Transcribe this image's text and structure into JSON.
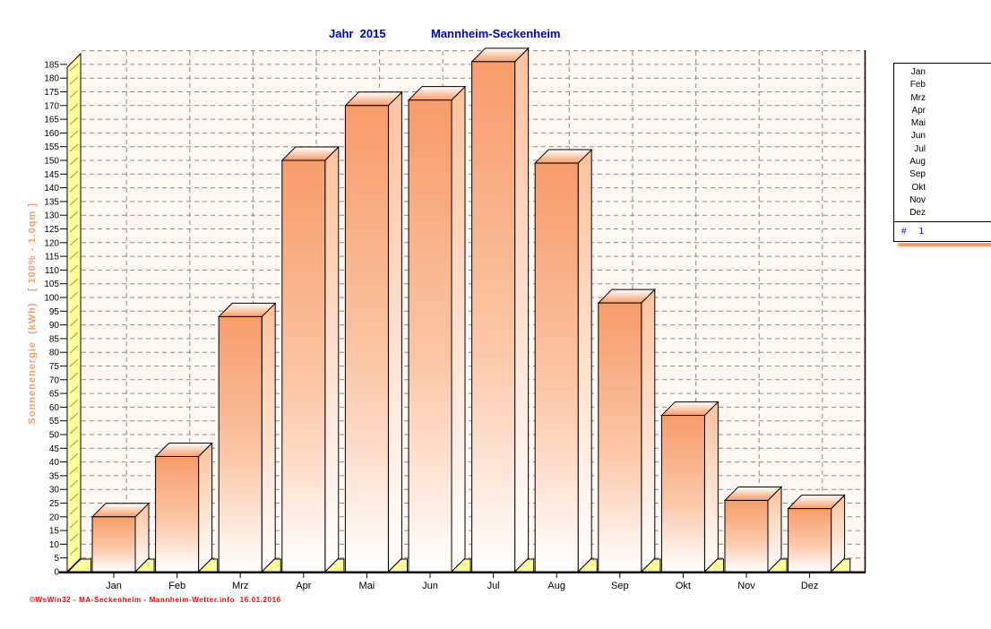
{
  "title": {
    "left": "Jahr  2015",
    "right": "Mannheim-Seckenheim"
  },
  "y_axis_label": "Sonnenenergie  (kWh)   [ 100% - 1.0qm ]",
  "footer": "©WsWin32 - MA-Seckenheim - Mannheim-Wetter.info  16.01.2016",
  "chart_data": {
    "type": "bar",
    "title": "Jahr 2015 — Mannheim-Seckenheim",
    "categories": [
      "Jan",
      "Feb",
      "Mrz",
      "Apr",
      "Mai",
      "Jun",
      "Jul",
      "Aug",
      "Sep",
      "Okt",
      "Nov",
      "Dez"
    ],
    "values": [
      20,
      42,
      93,
      150,
      170,
      172,
      186,
      149,
      98,
      57,
      26,
      23
    ],
    "xlabel": "",
    "ylabel": "Sonnenenergie (kWh) [ 100% - 1.0qm ]",
    "ylim": [
      0,
      190
    ],
    "ytick_step": 5,
    "ytick_label_max": 185,
    "grid": true,
    "legend_position": "right",
    "colors": {
      "bar_top": "#f79c6a",
      "bar_mid": "#fbc6a6",
      "bar_bottom": "#ffffff",
      "side_top": "#fbc29e",
      "wall_yellow": "#ffff9c",
      "hatch": "#9a9a60",
      "grid": "#8a8a8a",
      "plot_bg": "#fef7f2",
      "axis": "#000000",
      "title_blue": "#0000c0",
      "ylabel_orange": "#f89e6c",
      "footer_red": "#ff0000",
      "legend_shadow": "#f89e6c"
    }
  },
  "legend": {
    "months": [
      "Jan",
      "Feb",
      "Mrz",
      "Apr",
      "Mai",
      "Jun",
      "Jul",
      "Aug",
      "Sep",
      "Okt",
      "Nov",
      "Dez"
    ],
    "row2": {
      "hash": "#",
      "value": "1"
    }
  }
}
